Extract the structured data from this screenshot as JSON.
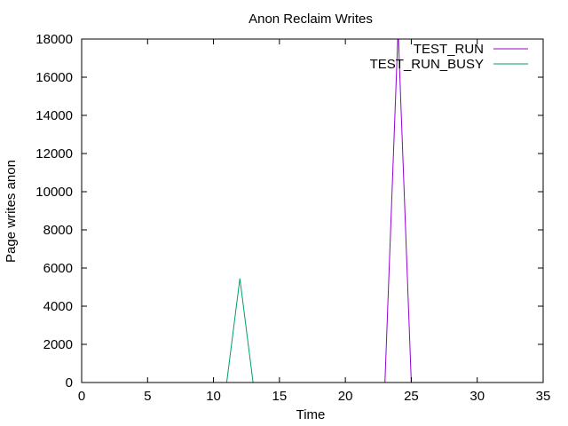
{
  "chart_data": {
    "type": "line",
    "title": "Anon Reclaim Writes",
    "xlabel": "Time",
    "ylabel": "Page writes anon",
    "xlim": [
      0,
      35
    ],
    "ylim": [
      0,
      18000
    ],
    "x_ticks": [
      0,
      5,
      10,
      15,
      20,
      25,
      30,
      35
    ],
    "y_ticks": [
      0,
      2000,
      4000,
      6000,
      8000,
      10000,
      12000,
      14000,
      16000,
      18000
    ],
    "grid": false,
    "legend_position": "top-right",
    "series": [
      {
        "name": "TEST_RUN",
        "color": "#9400d3",
        "x": [
          0,
          23,
          24,
          25,
          34
        ],
        "y": [
          0,
          0,
          18500,
          0,
          0
        ]
      },
      {
        "name": "TEST_RUN_BUSY",
        "color": "#009e73",
        "x": [
          0,
          11,
          12,
          13,
          34
        ],
        "y": [
          0,
          0,
          5450,
          0,
          0
        ]
      }
    ]
  }
}
